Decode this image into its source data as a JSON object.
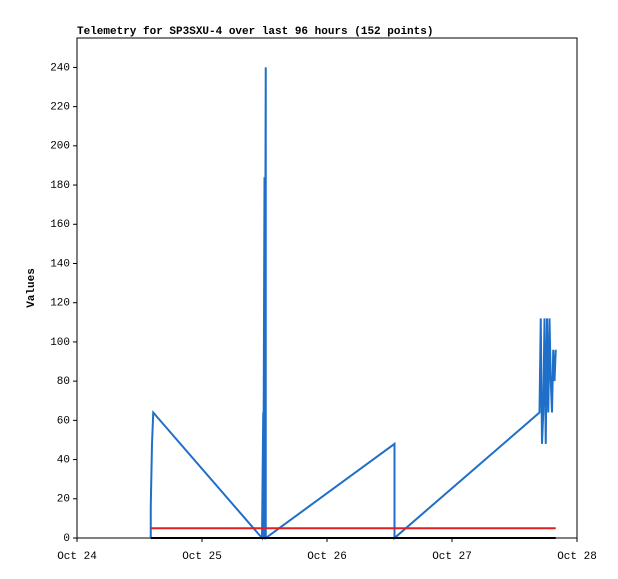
{
  "chart_data": {
    "type": "line",
    "title": "Telemetry for SP3SXU-4 over last 96 hours (152 points)",
    "y_label": "Values",
    "xlim": [
      0,
      4
    ],
    "xticks": [
      {
        "value": 0,
        "label": "Oct 24"
      },
      {
        "value": 1,
        "label": "Oct 25"
      },
      {
        "value": 2,
        "label": "Oct 26"
      },
      {
        "value": 3,
        "label": "Oct 27"
      },
      {
        "value": 4,
        "label": "Oct 28"
      }
    ],
    "ylim": [
      0,
      255
    ],
    "yticks": [
      0,
      20,
      40,
      60,
      80,
      100,
      120,
      140,
      160,
      180,
      200,
      220,
      240
    ],
    "series": [
      {
        "color": "#1f6fc8",
        "x": [
          0.59,
          0.59,
          0.6,
          0.61,
          1.48,
          1.49,
          1.49,
          1.5,
          1.5,
          1.51,
          1.51,
          2.54,
          2.54,
          3.7,
          3.71,
          3.72,
          3.73,
          3.74,
          3.75,
          3.76,
          3.77,
          3.78,
          3.79,
          3.8,
          3.81,
          3.82,
          3.83
        ],
        "values": [
          0,
          16,
          48,
          64,
          0,
          64,
          0,
          184,
          0,
          240,
          0,
          48,
          0,
          64,
          112,
          48,
          64,
          112,
          48,
          112,
          64,
          112,
          80,
          64,
          96,
          80,
          96
        ]
      },
      {
        "color": "#e02020",
        "x": [
          0.59,
          3.83
        ],
        "values": [
          5,
          5
        ]
      },
      {
        "color": "#000000",
        "x": [
          0.59,
          3.83
        ],
        "values": [
          0,
          0
        ]
      }
    ]
  }
}
